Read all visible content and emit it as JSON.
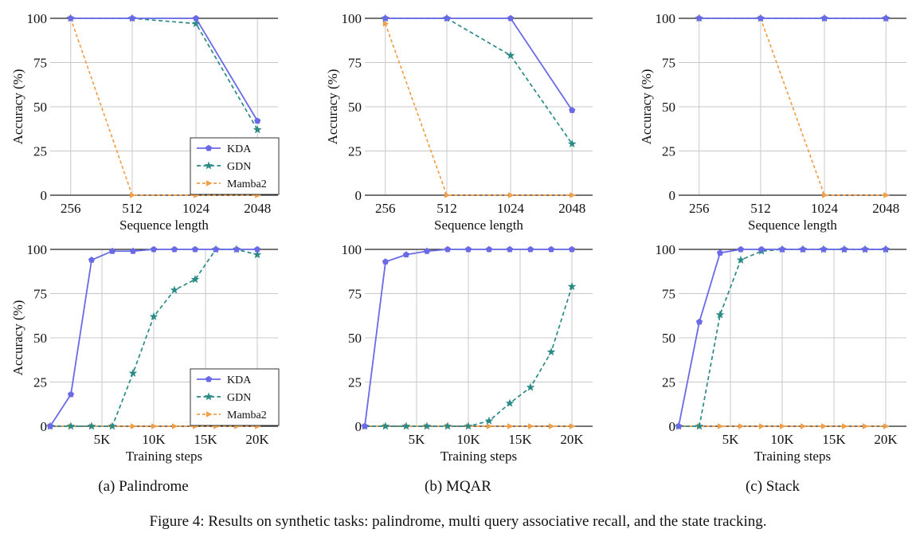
{
  "colors": {
    "KDA": "#6a6ae8",
    "GDN": "#2a8a86",
    "Mamba2": "#f0a04a",
    "grid": "#c8c8c8",
    "axis": "#222222"
  },
  "legend_labels": [
    "KDA",
    "GDN",
    "Mamba2"
  ],
  "subcaptions": [
    "(a) Palindrome",
    "(b) MQAR",
    "(c) Stack"
  ],
  "figure_caption": "Figure 4: Results on synthetic tasks: palindrome, multi query associative recall, and the state tracking.",
  "chart_data": [
    {
      "type": "line",
      "task": "Palindrome",
      "panel": "sequence-length",
      "xlabel": "Sequence length",
      "ylabel": "Accuracy (%)",
      "x": [
        256,
        512,
        1024,
        2048
      ],
      "x_ticks": [
        "256",
        "512",
        "1024",
        "2048"
      ],
      "ylim": [
        0,
        100
      ],
      "y_ticks": [
        0,
        25,
        50,
        75,
        100
      ],
      "grid": true,
      "legend": true,
      "legend_position": "bottom-right",
      "series": [
        {
          "name": "KDA",
          "values": [
            100,
            100,
            100,
            42
          ]
        },
        {
          "name": "GDN",
          "values": [
            100,
            100,
            97,
            37
          ]
        },
        {
          "name": "Mamba2",
          "values": [
            100,
            0,
            0,
            0
          ]
        }
      ]
    },
    {
      "type": "line",
      "task": "MQAR",
      "panel": "sequence-length",
      "xlabel": "Sequence length",
      "ylabel": "Accuracy (%)",
      "x": [
        256,
        512,
        1024,
        2048
      ],
      "x_ticks": [
        "256",
        "512",
        "1024",
        "2048"
      ],
      "ylim": [
        0,
        100
      ],
      "y_ticks": [
        0,
        25,
        50,
        75,
        100
      ],
      "grid": true,
      "legend": false,
      "series": [
        {
          "name": "KDA",
          "values": [
            100,
            100,
            100,
            48
          ]
        },
        {
          "name": "GDN",
          "values": [
            100,
            100,
            79,
            29
          ]
        },
        {
          "name": "Mamba2",
          "values": [
            97,
            0,
            0,
            0
          ]
        }
      ]
    },
    {
      "type": "line",
      "task": "Stack",
      "panel": "sequence-length",
      "xlabel": "Sequence length",
      "ylabel": "Accuracy (%)",
      "x": [
        256,
        512,
        1024,
        2048
      ],
      "x_ticks": [
        "256",
        "512",
        "1024",
        "2048"
      ],
      "ylim": [
        0,
        100
      ],
      "y_ticks": [
        0,
        25,
        50,
        75,
        100
      ],
      "grid": true,
      "legend": false,
      "series": [
        {
          "name": "KDA",
          "values": [
            100,
            100,
            100,
            100
          ]
        },
        {
          "name": "GDN",
          "values": [
            100,
            100,
            100,
            100
          ]
        },
        {
          "name": "Mamba2",
          "values": [
            100,
            100,
            0,
            0
          ]
        }
      ]
    },
    {
      "type": "line",
      "task": "Palindrome",
      "panel": "training-steps",
      "xlabel": "Training steps",
      "ylabel": "Accuracy (%)",
      "x": [
        0,
        2000,
        4000,
        6000,
        8000,
        10000,
        12000,
        14000,
        16000,
        18000,
        20000
      ],
      "xlim": [
        0,
        22000
      ],
      "x_tick_values": [
        5000,
        10000,
        15000,
        20000
      ],
      "x_ticks": [
        "5K",
        "10K",
        "15K",
        "20K"
      ],
      "ylim": [
        0,
        100
      ],
      "y_ticks": [
        0,
        25,
        50,
        75,
        100
      ],
      "grid": true,
      "legend": true,
      "legend_position": "bottom-right",
      "series": [
        {
          "name": "KDA",
          "values": [
            0,
            18,
            94,
            99,
            99,
            100,
            100,
            100,
            100,
            100,
            100
          ]
        },
        {
          "name": "GDN",
          "values": [
            0,
            0,
            0,
            0,
            30,
            62,
            77,
            83,
            100,
            100,
            97
          ]
        },
        {
          "name": "Mamba2",
          "values": [
            0,
            0,
            0,
            0,
            0,
            0,
            0,
            0,
            0,
            0,
            0
          ]
        }
      ]
    },
    {
      "type": "line",
      "task": "MQAR",
      "panel": "training-steps",
      "xlabel": "Training steps",
      "ylabel": "",
      "x": [
        0,
        2000,
        4000,
        6000,
        8000,
        10000,
        12000,
        14000,
        16000,
        18000,
        20000
      ],
      "xlim": [
        0,
        22000
      ],
      "x_tick_values": [
        5000,
        10000,
        15000,
        20000
      ],
      "x_ticks": [
        "5K",
        "10K",
        "15K",
        "20K"
      ],
      "ylim": [
        0,
        100
      ],
      "y_ticks": [
        0,
        25,
        50,
        75,
        100
      ],
      "grid": true,
      "legend": false,
      "series": [
        {
          "name": "KDA",
          "values": [
            0,
            93,
            97,
            99,
            100,
            100,
            100,
            100,
            100,
            100,
            100
          ]
        },
        {
          "name": "GDN",
          "values": [
            0,
            0,
            0,
            0,
            0,
            0,
            3,
            13,
            22,
            42,
            79
          ]
        },
        {
          "name": "Mamba2",
          "values": [
            0,
            0,
            0,
            0,
            0,
            0,
            0,
            0,
            0,
            0,
            0
          ]
        }
      ]
    },
    {
      "type": "line",
      "task": "Stack",
      "panel": "training-steps",
      "xlabel": "Training steps",
      "ylabel": "",
      "x": [
        0,
        2000,
        4000,
        6000,
        8000,
        10000,
        12000,
        14000,
        16000,
        18000,
        20000
      ],
      "xlim": [
        0,
        22000
      ],
      "x_tick_values": [
        5000,
        10000,
        15000,
        20000
      ],
      "x_ticks": [
        "5K",
        "10K",
        "15K",
        "20K"
      ],
      "ylim": [
        0,
        100
      ],
      "y_ticks": [
        0,
        25,
        50,
        75,
        100
      ],
      "grid": true,
      "legend": false,
      "series": [
        {
          "name": "KDA",
          "values": [
            0,
            59,
            98,
            100,
            100,
            100,
            100,
            100,
            100,
            100,
            100
          ]
        },
        {
          "name": "GDN",
          "values": [
            0,
            0,
            63,
            94,
            99,
            100,
            100,
            100,
            100,
            100,
            100
          ]
        },
        {
          "name": "Mamba2",
          "values": [
            0,
            0,
            0,
            0,
            0,
            0,
            0,
            0,
            0,
            0,
            0
          ]
        }
      ]
    }
  ]
}
